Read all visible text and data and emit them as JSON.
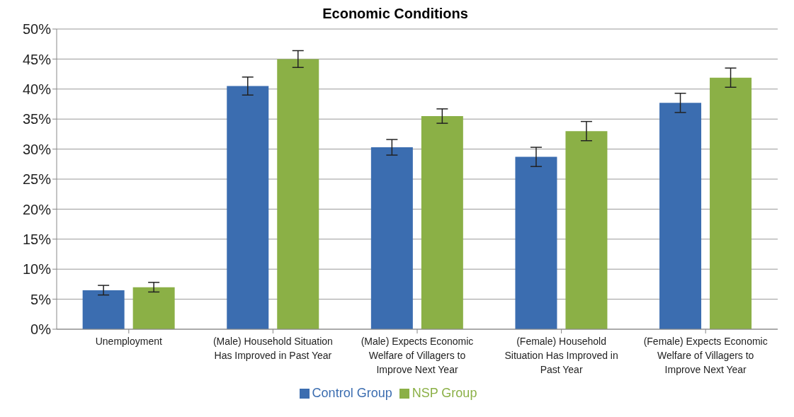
{
  "chart_data": {
    "type": "bar",
    "title": "Economic Conditions",
    "categories": [
      "Unemployment",
      "(Male) Household Situation Has Improved in Past Year",
      "(Male) Expects Economic Welfare of Villagers to Improve Next Year",
      "(Female) Household Situation Has Improved in Past Year",
      "(Female) Expects Economic Welfare of Villagers to Improve Next Year"
    ],
    "series": [
      {
        "name": "Control Group",
        "color": "#3b6db0",
        "values": [
          6.5,
          40.5,
          30.3,
          28.7,
          37.7
        ],
        "errors": [
          0.8,
          1.5,
          1.3,
          1.6,
          1.6
        ]
      },
      {
        "name": "NSP Group",
        "color": "#8bb046",
        "values": [
          7.0,
          45.0,
          35.5,
          33.0,
          41.9
        ],
        "errors": [
          0.8,
          1.4,
          1.2,
          1.6,
          1.6
        ]
      }
    ],
    "ylim": [
      0,
      50
    ],
    "yticks": [
      {
        "value": 0,
        "label": "0%"
      },
      {
        "value": 5,
        "label": "5%"
      },
      {
        "value": 10,
        "label": "10%"
      },
      {
        "value": 15,
        "label": "15%"
      },
      {
        "value": 20,
        "label": "20%"
      },
      {
        "value": 25,
        "label": "25%"
      },
      {
        "value": 30,
        "label": "30%"
      },
      {
        "value": 35,
        "label": "35%"
      },
      {
        "value": 40,
        "label": "40%"
      },
      {
        "value": 45,
        "label": "45%"
      },
      {
        "value": 50,
        "label": "50%"
      }
    ],
    "grid": "y",
    "legend": "bottom"
  }
}
